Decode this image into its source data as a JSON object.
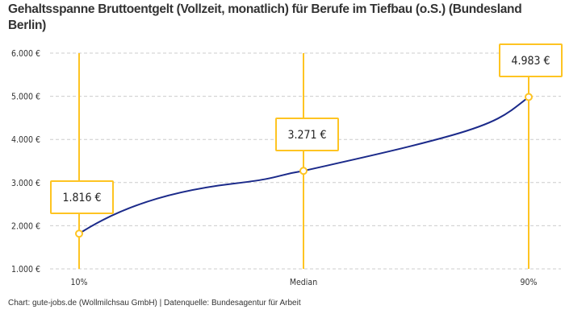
{
  "chart_data": {
    "type": "line",
    "title": "Gehaltsspanne Bruttoentgelt (Vollzeit, monatlich) für Berufe im Tiefbau (o.S.) (Bundesland Berlin)",
    "categories": [
      "10%",
      "Median",
      "90%"
    ],
    "values": [
      1816,
      3271,
      4983
    ],
    "data_labels": [
      "1.816 €",
      "3.271 €",
      "4.983 €"
    ],
    "yticks": [
      1000,
      2000,
      3000,
      4000,
      5000,
      6000
    ],
    "ytick_labels": [
      "1.000 €",
      "2.000 €",
      "3.000 €",
      "4.000 €",
      "5.000 €",
      "6.000 €"
    ],
    "ylim": [
      1000,
      6000
    ],
    "grid": true,
    "colors": {
      "line": "#1b2a8a",
      "accent": "#fec422",
      "grid": "#cccccc"
    }
  },
  "credit": "Chart: gute-jobs.de (Wollmilchsau GmbH) | Datenquelle: Bundesagentur für Arbeit"
}
